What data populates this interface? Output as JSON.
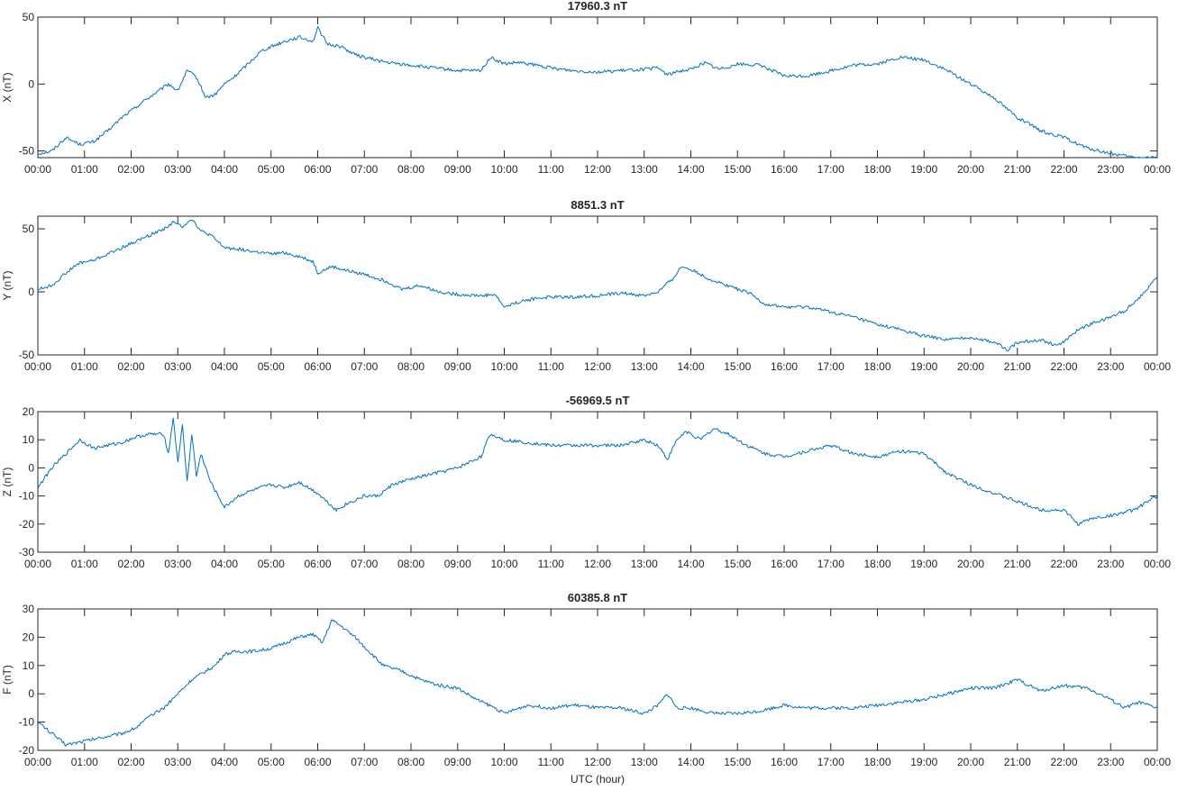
{
  "figure": {
    "xlabel": "UTC (hour)",
    "line_color": "#0072BD"
  },
  "chart_data": [
    {
      "type": "line",
      "title": "17960.3 nT",
      "ylabel": "X (nT)",
      "ylim": [
        -55,
        50
      ],
      "yticks": [
        -50,
        0,
        50
      ],
      "xlim": [
        0,
        24
      ],
      "xticks": [
        "00:00",
        "01:00",
        "02:00",
        "03:00",
        "04:00",
        "05:00",
        "06:00",
        "07:00",
        "08:00",
        "09:00",
        "10:00",
        "11:00",
        "12:00",
        "13:00",
        "14:00",
        "15:00",
        "16:00",
        "17:00",
        "18:00",
        "19:00",
        "20:00",
        "21:00",
        "22:00",
        "23:00",
        "00:00"
      ],
      "series": [
        {
          "x": [
            0,
            0.3,
            0.6,
            0.9,
            1.2,
            1.5,
            1.8,
            2.0,
            2.3,
            2.6,
            2.8,
            3.0,
            3.2,
            3.4,
            3.6,
            3.8,
            4.0,
            4.2,
            4.5,
            4.8,
            5.0,
            5.3,
            5.6,
            5.9,
            6.0,
            6.2,
            6.5,
            6.8,
            7.0,
            7.5,
            8.0,
            8.5,
            9.0,
            9.5,
            9.7,
            10.0,
            10.3,
            10.7,
            11.0,
            11.5,
            12.0,
            12.5,
            13.0,
            13.3,
            13.5,
            13.8,
            14.0,
            14.3,
            14.6,
            15.0,
            15.5,
            16.0,
            16.5,
            17.0,
            17.5,
            18.0,
            18.5,
            19.0,
            19.5,
            20.0,
            20.5,
            21.0,
            21.5,
            22.0,
            22.5,
            23.0,
            23.5,
            24.0
          ],
          "y": [
            -52,
            -50,
            -40,
            -45,
            -43,
            -35,
            -25,
            -20,
            -12,
            -5,
            0,
            -5,
            10,
            5,
            -10,
            -8,
            0,
            5,
            15,
            25,
            28,
            32,
            35,
            32,
            42,
            30,
            28,
            22,
            20,
            16,
            14,
            12,
            10,
            10,
            20,
            15,
            16,
            14,
            12,
            10,
            9,
            10,
            11,
            12,
            7,
            10,
            11,
            16,
            11,
            15,
            14,
            6,
            6,
            10,
            14,
            15,
            20,
            18,
            10,
            0,
            -10,
            -25,
            -35,
            -40,
            -48,
            -52,
            -55,
            -55
          ]
        }
      ]
    },
    {
      "type": "line",
      "title": "8851.3 nT",
      "ylabel": "Y (nT)",
      "ylim": [
        -50,
        60
      ],
      "yticks": [
        -50,
        0,
        50
      ],
      "xlim": [
        0,
        24
      ],
      "xticks": [
        "00:00",
        "01:00",
        "02:00",
        "03:00",
        "04:00",
        "05:00",
        "06:00",
        "07:00",
        "08:00",
        "09:00",
        "10:00",
        "11:00",
        "12:00",
        "13:00",
        "14:00",
        "15:00",
        "16:00",
        "17:00",
        "18:00",
        "19:00",
        "20:00",
        "21:00",
        "22:00",
        "23:00",
        "00:00"
      ],
      "series": [
        {
          "x": [
            0,
            0.3,
            0.6,
            0.9,
            1.2,
            1.5,
            1.8,
            2.1,
            2.4,
            2.7,
            2.9,
            3.1,
            3.3,
            3.5,
            3.7,
            4.0,
            4.3,
            4.6,
            5.0,
            5.3,
            5.6,
            5.9,
            6.0,
            6.3,
            6.6,
            7.0,
            7.5,
            7.8,
            8.2,
            8.6,
            9.0,
            9.5,
            9.8,
            10.0,
            10.3,
            10.7,
            11.0,
            11.5,
            12.0,
            12.5,
            13.0,
            13.3,
            13.6,
            13.8,
            14.0,
            14.4,
            14.8,
            15.3,
            15.6,
            16.0,
            16.5,
            17.0,
            17.5,
            18.0,
            18.5,
            19.0,
            19.5,
            20.0,
            20.5,
            20.8,
            21.0,
            21.5,
            21.8,
            22.0,
            22.3,
            22.6,
            23.0,
            23.3,
            23.6,
            24.0
          ],
          "y": [
            2,
            5,
            15,
            23,
            25,
            30,
            35,
            40,
            45,
            50,
            55,
            52,
            58,
            48,
            45,
            35,
            34,
            32,
            30,
            31,
            28,
            24,
            15,
            20,
            17,
            14,
            8,
            2,
            5,
            0,
            -2,
            -3,
            -2,
            -12,
            -8,
            -5,
            -4,
            -4,
            -3,
            -1,
            -3,
            0,
            10,
            20,
            18,
            10,
            5,
            -2,
            -10,
            -12,
            -12,
            -16,
            -20,
            -26,
            -30,
            -35,
            -38,
            -36,
            -40,
            -46,
            -40,
            -38,
            -42,
            -40,
            -30,
            -25,
            -20,
            -15,
            -5,
            12
          ]
        }
      ]
    },
    {
      "type": "line",
      "title": "-56969.5 nT",
      "ylabel": "Z (nT)",
      "ylim": [
        -30,
        20
      ],
      "yticks": [
        -30,
        -20,
        -10,
        0,
        10,
        20
      ],
      "xlim": [
        0,
        24
      ],
      "xticks": [
        "00:00",
        "01:00",
        "02:00",
        "03:00",
        "04:00",
        "05:00",
        "06:00",
        "07:00",
        "08:00",
        "09:00",
        "10:00",
        "11:00",
        "12:00",
        "13:00",
        "14:00",
        "15:00",
        "16:00",
        "17:00",
        "18:00",
        "19:00",
        "20:00",
        "21:00",
        "22:00",
        "23:00",
        "00:00"
      ],
      "series": [
        {
          "x": [
            0,
            0.3,
            0.6,
            0.9,
            1.2,
            1.5,
            1.8,
            2.1,
            2.4,
            2.7,
            2.8,
            2.9,
            3.0,
            3.1,
            3.2,
            3.3,
            3.4,
            3.5,
            3.6,
            3.7,
            3.8,
            4.0,
            4.3,
            4.6,
            5.0,
            5.3,
            5.6,
            5.9,
            6.0,
            6.2,
            6.4,
            6.6,
            7.0,
            7.3,
            7.6,
            8.0,
            8.5,
            9.0,
            9.5,
            9.7,
            10.0,
            10.5,
            11.0,
            11.5,
            12.0,
            12.5,
            13.0,
            13.3,
            13.5,
            13.7,
            13.9,
            14.2,
            14.5,
            14.8,
            15.2,
            15.6,
            16.0,
            16.5,
            17.0,
            17.5,
            18.0,
            18.5,
            19.0,
            19.5,
            20.0,
            20.5,
            21.0,
            21.5,
            22.0,
            22.3,
            22.6,
            23.0,
            23.5,
            24.0
          ],
          "y": [
            -7,
            0,
            5,
            10,
            7,
            8,
            9,
            11,
            12,
            12,
            5,
            18,
            2,
            15,
            -5,
            12,
            -3,
            5,
            0,
            -5,
            -8,
            -14,
            -10,
            -8,
            -6,
            -7,
            -5,
            -8,
            -9,
            -12,
            -15,
            -13,
            -10,
            -10,
            -6,
            -4,
            -2,
            0,
            4,
            12,
            10,
            9,
            8,
            8,
            8,
            8,
            10,
            8,
            3,
            10,
            13,
            10,
            14,
            12,
            8,
            5,
            4,
            6,
            8,
            5,
            4,
            6,
            5,
            -2,
            -6,
            -9,
            -12,
            -15,
            -15,
            -20,
            -18,
            -17,
            -15,
            -10
          ]
        }
      ]
    },
    {
      "type": "line",
      "title": "60385.8 nT",
      "ylabel": "F (nT)",
      "ylim": [
        -20,
        30
      ],
      "yticks": [
        -20,
        -10,
        0,
        10,
        20,
        30
      ],
      "xlim": [
        0,
        24
      ],
      "xticks": [
        "00:00",
        "01:00",
        "02:00",
        "03:00",
        "04:00",
        "05:00",
        "06:00",
        "07:00",
        "08:00",
        "09:00",
        "10:00",
        "11:00",
        "12:00",
        "13:00",
        "14:00",
        "15:00",
        "16:00",
        "17:00",
        "18:00",
        "19:00",
        "20:00",
        "21:00",
        "22:00",
        "23:00",
        "00:00"
      ],
      "series": [
        {
          "x": [
            0,
            0.3,
            0.6,
            0.9,
            1.2,
            1.5,
            1.8,
            2.1,
            2.4,
            2.7,
            3.0,
            3.3,
            3.6,
            3.8,
            4.0,
            4.3,
            4.6,
            5.0,
            5.3,
            5.6,
            5.9,
            6.1,
            6.3,
            6.5,
            6.8,
            7.1,
            7.4,
            7.8,
            8.2,
            8.6,
            9.0,
            9.4,
            9.8,
            10.0,
            10.5,
            11.0,
            11.5,
            12.0,
            12.5,
            13.0,
            13.3,
            13.5,
            13.7,
            14.0,
            14.5,
            15.0,
            15.5,
            16.0,
            16.5,
            17.0,
            17.5,
            18.0,
            18.5,
            19.0,
            19.5,
            20.0,
            20.5,
            21.0,
            21.5,
            22.0,
            22.5,
            23.0,
            23.3,
            23.6,
            24.0
          ],
          "y": [
            -10,
            -14,
            -18,
            -17,
            -16,
            -15,
            -14,
            -12,
            -8,
            -5,
            0,
            5,
            8,
            10,
            14,
            15,
            15,
            16,
            18,
            20,
            21,
            18,
            26,
            24,
            20,
            15,
            10,
            8,
            5,
            3,
            2,
            -2,
            -5,
            -7,
            -4,
            -5,
            -4,
            -5,
            -5,
            -7,
            -4,
            0,
            -5,
            -5,
            -7,
            -7,
            -6,
            -4,
            -5,
            -5,
            -5,
            -4,
            -3,
            -2,
            0,
            2,
            2,
            5,
            1,
            3,
            2,
            -2,
            -5,
            -3,
            -5
          ]
        }
      ]
    }
  ]
}
